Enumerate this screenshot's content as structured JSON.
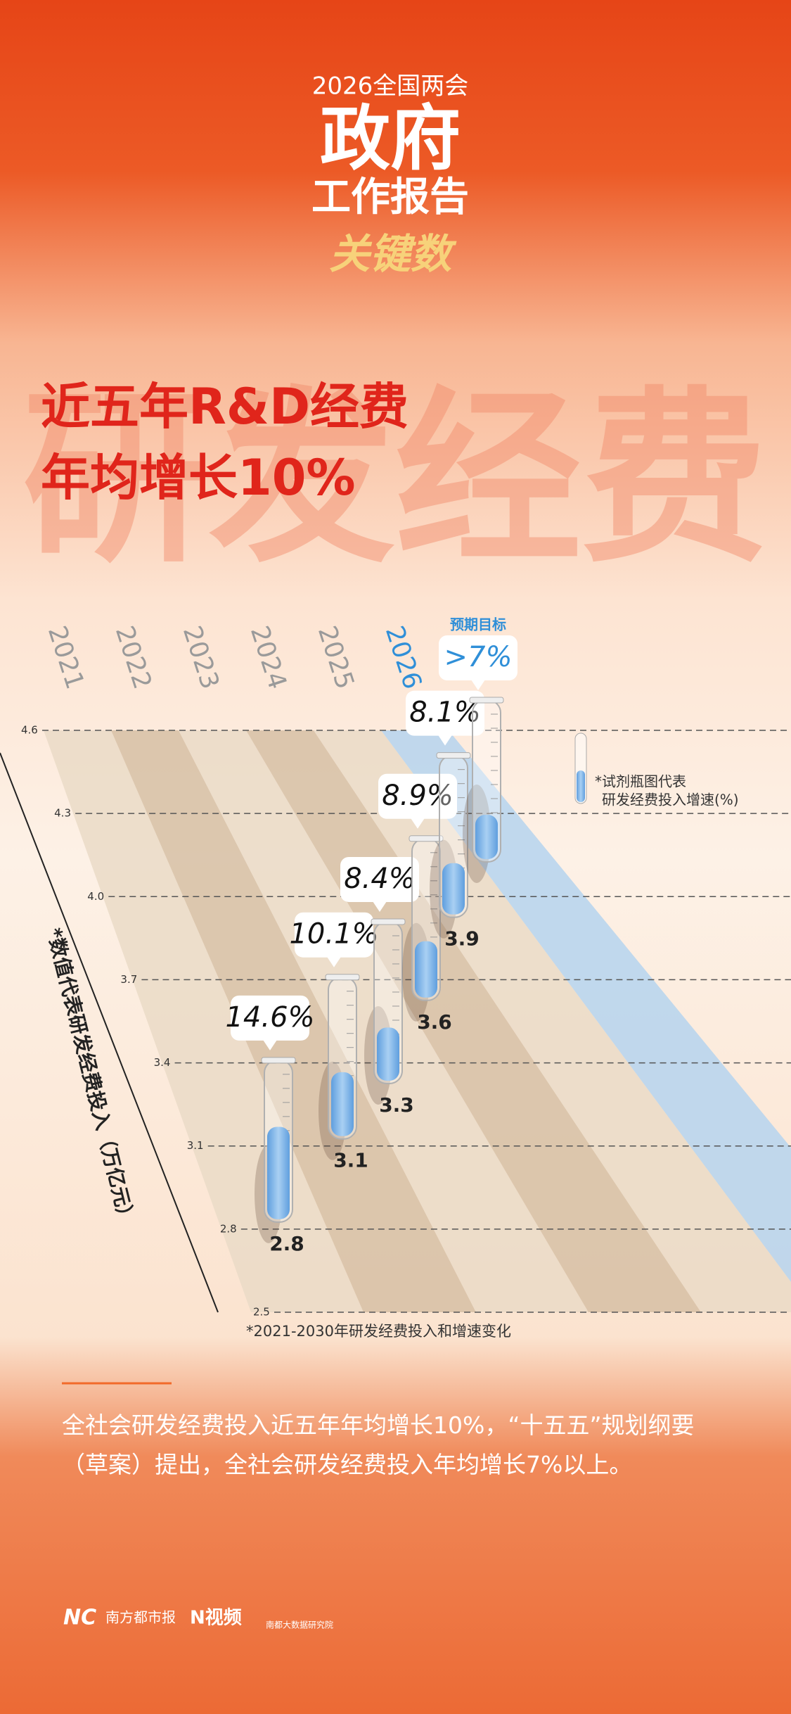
{
  "header": {
    "event": "2026全国两会",
    "title_line1": "政府",
    "title_line2": "工作报告",
    "subtitle": "关键数",
    "watermark": "研发经费",
    "headline_line1": "近五年R&D经费",
    "headline_line2": "年均增长10%"
  },
  "chart_data": {
    "type": "bar",
    "categories": [
      "2021",
      "2022",
      "2023",
      "2024",
      "2025",
      "2026"
    ],
    "series": [
      {
        "values": [
          2.8,
          3.1,
          3.3,
          3.6,
          3.9,
          null
        ],
        "color": "#222222"
      },
      {
        "name": "研发经费投入增速(%)",
        "color": "#7db4e6",
        "values": [
          14.6,
          10.1,
          8.4,
          8.9,
          8.1,
          7
        ],
        "value_labels": [
          "14.6%",
          "10.1%",
          "8.4%",
          "8.9%",
          "8.1%",
          ">7%"
        ]
      }
    ],
    "target_label": "预期目标",
    "highlight_color": "#2f8fd8",
    "legend_prefix": "*试剂瓶图代表",
    "y_label": "*数值代表研发经费投入（万亿元）",
    "note": "*2021-2030年研发经费投入和增速变化",
    "ylim": [
      2.5,
      4.6
    ],
    "yticks": [
      2.5,
      2.8,
      3.1,
      3.4,
      3.7,
      {
        "value": 4,
        "label": "4.0"
      },
      4.3,
      4.6
    ]
  },
  "footer": {
    "text": "全社会研发经费投入近五年年均增长10%，“十五五”规划纲要（草案）提出，全社会研发经费投入年均增长7%以上。",
    "logos": [
      "南方都市报",
      "N视频",
      "南都大数据研究院"
    ]
  }
}
